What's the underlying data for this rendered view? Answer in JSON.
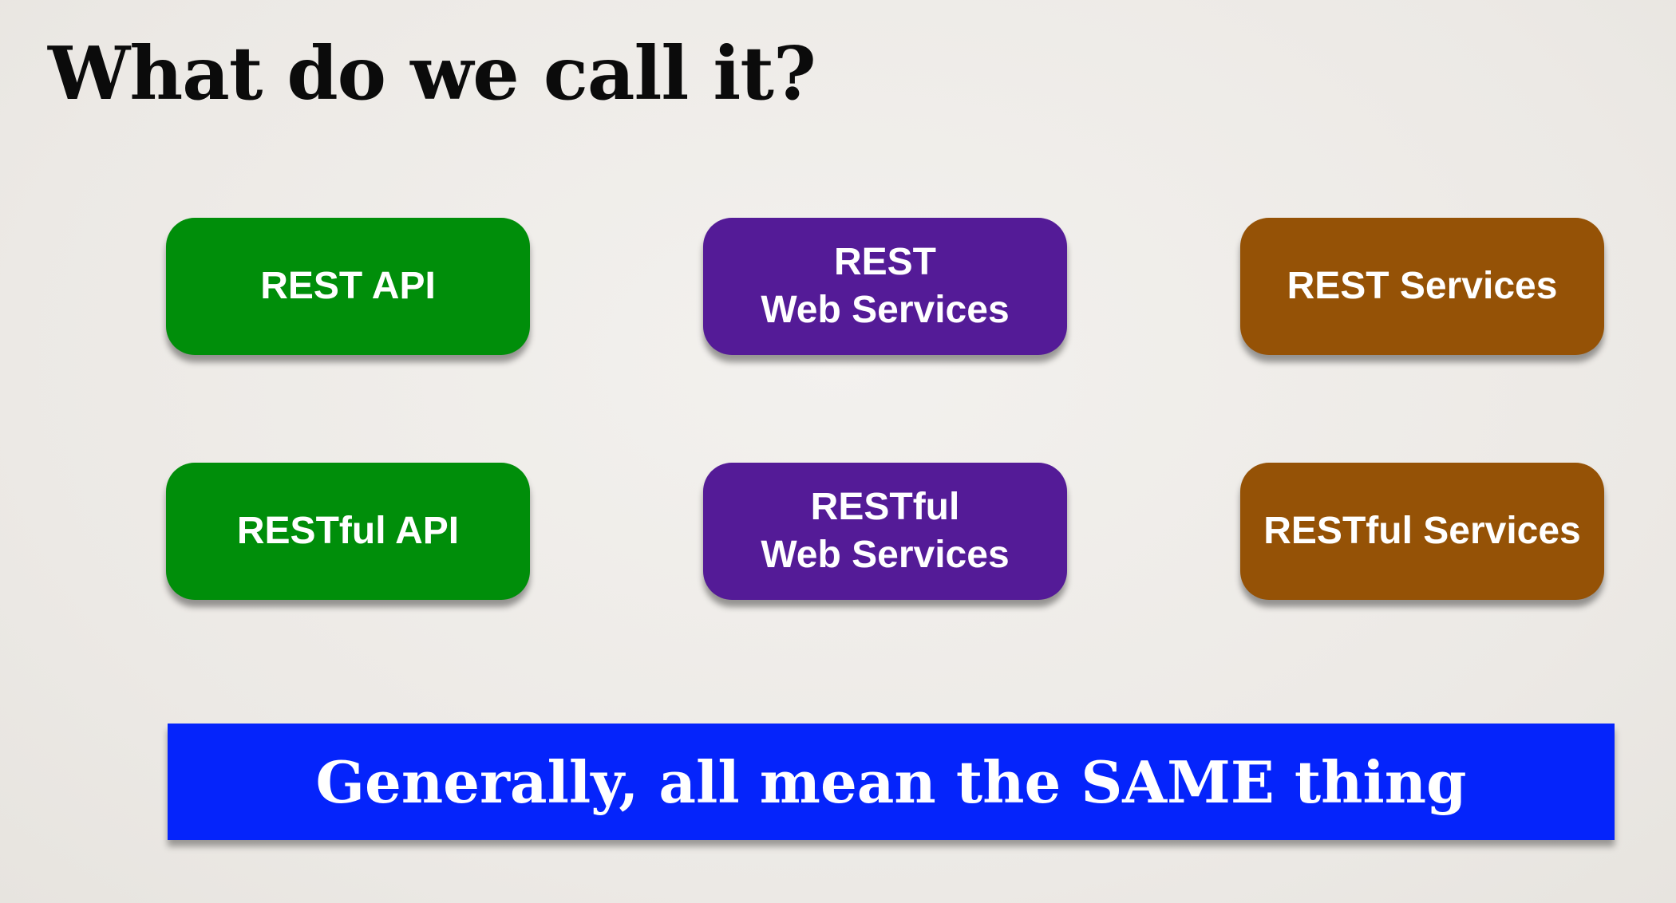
{
  "slide": {
    "title": "What do we call it?",
    "terms": [
      {
        "lines": [
          "REST API"
        ],
        "color": "#008e0a"
      },
      {
        "lines": [
          "REST",
          "Web Services"
        ],
        "color": "#541b97"
      },
      {
        "lines": [
          "REST Services"
        ],
        "color": "#955206"
      },
      {
        "lines": [
          "RESTful API"
        ],
        "color": "#008e0a"
      },
      {
        "lines": [
          "RESTful",
          "Web Services"
        ],
        "color": "#541b97"
      },
      {
        "lines": [
          "RESTful Services"
        ],
        "color": "#955206"
      }
    ],
    "conclusion": "Generally, all mean the SAME thing",
    "conclusion_color": "#0524fb"
  }
}
